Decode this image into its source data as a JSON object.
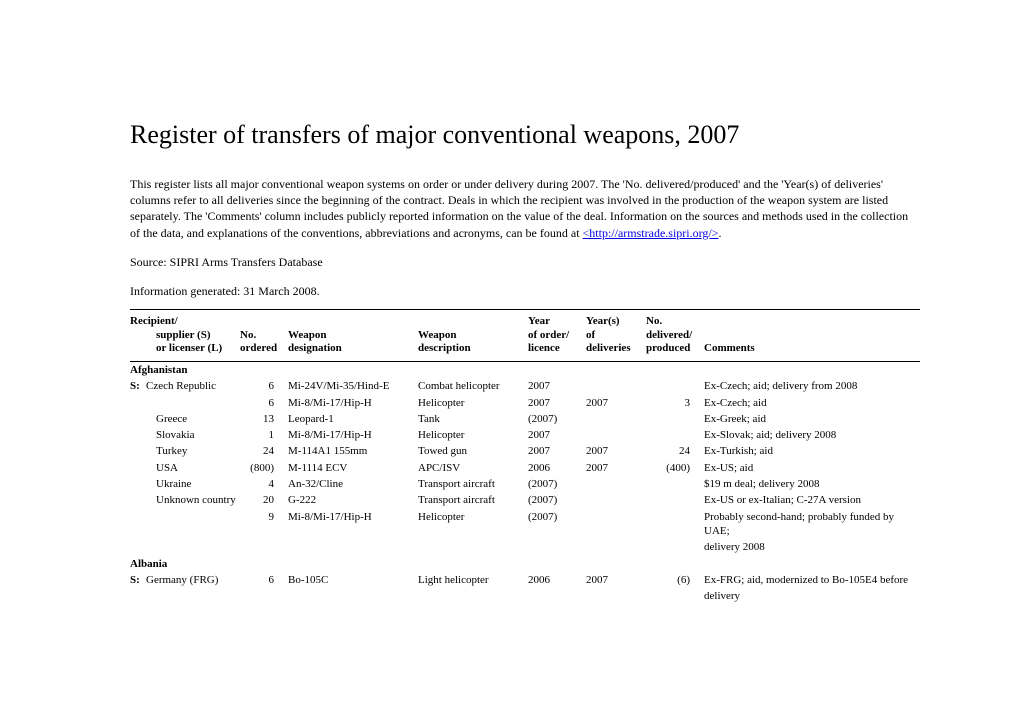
{
  "title": "Register of transfers of major conventional weapons, 2007",
  "intro_text": "This register lists all major conventional weapon systems on order or under delivery during 2007. The 'No. delivered/produced' and the 'Year(s) of deliveries' columns refer to all deliveries since the beginning of the contract. Deals in which the recipient was involved in the production of the weapon system are listed separately. The 'Comments' column includes publicly reported information on the value of the deal. Information on the sources and methods used in the collection of the data, and explanations of the conventions, abbreviations and acronyms, can be found at ",
  "intro_link": "<http://armstrade.sipri.org/>",
  "intro_tail": ".",
  "source": "Source: SIPRI Arms Transfers Database",
  "generated": "Information generated: 31 March 2008.",
  "headers": {
    "supplier_line1": "Recipient/",
    "supplier_line2": "supplier (S)",
    "supplier_line3": "or licenser (L)",
    "no_line2": "No.",
    "no_line3": "ordered",
    "desig_line2": "Weapon",
    "desig_line3": "designation",
    "desc_line2": "Weapon",
    "desc_line3": "description",
    "year_line1": "Year",
    "year_line2": "of order/",
    "year_line3": "licence",
    "yrs_line1": "Year(s)",
    "yrs_line2": "of",
    "yrs_line3": "deliveries",
    "deliv_line1": "No.",
    "deliv_line2": "delivered/",
    "deliv_line3": "produced",
    "comm_line3": "Comments"
  },
  "groups": [
    {
      "recipient": "Afghanistan",
      "rows": [
        {
          "prefix": "S:",
          "supplier": "Czech Republic",
          "no": "6",
          "desig": "Mi-24V/Mi-35/Hind-E",
          "desc": "Combat helicopter",
          "year": "2007",
          "yrs": "",
          "deliv": "",
          "comment": "Ex-Czech; aid; delivery from 2008"
        },
        {
          "prefix": "",
          "supplier": "",
          "no": "6",
          "desig": "Mi-8/Mi-17/Hip-H",
          "desc": "Helicopter",
          "year": "2007",
          "yrs": "2007",
          "deliv": "3",
          "comment": "Ex-Czech; aid"
        },
        {
          "prefix": "",
          "supplier": "Greece",
          "no": "13",
          "desig": "Leopard-1",
          "desc": "Tank",
          "year": "(2007)",
          "yrs": "",
          "deliv": "",
          "comment": "Ex-Greek; aid"
        },
        {
          "prefix": "",
          "supplier": "Slovakia",
          "no": "1",
          "desig": "Mi-8/Mi-17/Hip-H",
          "desc": "Helicopter",
          "year": "2007",
          "yrs": "",
          "deliv": "",
          "comment": "Ex-Slovak; aid; delivery 2008"
        },
        {
          "prefix": "",
          "supplier": "Turkey",
          "no": "24",
          "desig": "M-114A1 155mm",
          "desc": "Towed gun",
          "year": "2007",
          "yrs": "2007",
          "deliv": "24",
          "comment": "Ex-Turkish; aid"
        },
        {
          "prefix": "",
          "supplier": "USA",
          "no": "(800)",
          "desig": "M-1114 ECV",
          "desc": "APC/ISV",
          "year": "2006",
          "yrs": "2007",
          "deliv": "(400)",
          "comment": "Ex-US; aid"
        },
        {
          "prefix": "",
          "supplier": "Ukraine",
          "no": "4",
          "desig": "An-32/Cline",
          "desc": "Transport aircraft",
          "year": "(2007)",
          "yrs": "",
          "deliv": "",
          "comment": "$19 m deal; delivery 2008"
        },
        {
          "prefix": "",
          "supplier": "Unknown country",
          "no": "20",
          "desig": "G-222",
          "desc": "Transport aircraft",
          "year": "(2007)",
          "yrs": "",
          "deliv": "",
          "comment": "Ex-US or ex-Italian; C-27A version"
        },
        {
          "prefix": "",
          "supplier": "",
          "no": "9",
          "desig": "Mi-8/Mi-17/Hip-H",
          "desc": "Helicopter",
          "year": "(2007)",
          "yrs": "",
          "deliv": "",
          "comment": "Probably second-hand; probably funded by UAE;",
          "comment2": "delivery 2008"
        }
      ]
    },
    {
      "recipient": "Albania",
      "rows": [
        {
          "prefix": "S:",
          "supplier": "Germany (FRG)",
          "no": "6",
          "desig": "Bo-105C",
          "desc": "Light helicopter",
          "year": "2006",
          "yrs": "2007",
          "deliv": "(6)",
          "comment": "Ex-FRG; aid, modernized to Bo-105E4 before",
          "comment2": "delivery"
        }
      ]
    }
  ]
}
